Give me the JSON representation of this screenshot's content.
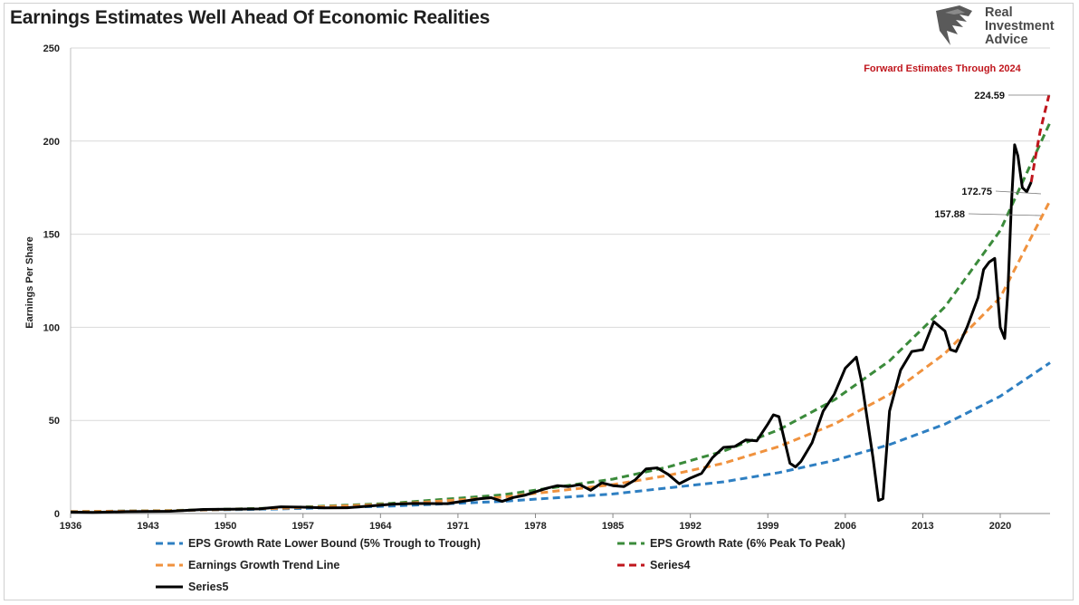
{
  "title": "Earnings Estimates Well Ahead Of Economic Realities",
  "logo": {
    "line1": "Real",
    "line2": "Investment",
    "line3": "Advice"
  },
  "colors": {
    "lower": "#2e7fc2",
    "peak": "#3b8b3b",
    "trend": "#f0923e",
    "series4": "#c0161d",
    "series5": "#000000"
  },
  "chart_data": {
    "type": "line",
    "ylabel": "Earnings Per Share",
    "xlabel": "",
    "ylim": [
      0,
      250
    ],
    "xlim": [
      1936,
      2024.5
    ],
    "yticks": [
      0,
      50,
      100,
      150,
      200,
      250
    ],
    "xticks": [
      "1936",
      "1943",
      "1950",
      "1957",
      "1964",
      "1971",
      "1978",
      "1985",
      "1992",
      "1999",
      "2006",
      "2013",
      "2020"
    ],
    "grid": "horizontal",
    "legend_position": "bottom",
    "annotations": [
      {
        "text": "Forward Estimates Through 2024",
        "color": "#c0161d"
      },
      {
        "text": "224.59",
        "x": 2024.4,
        "y": 224.59
      },
      {
        "text": "172.75",
        "x": 2024.0,
        "y": 172.75
      },
      {
        "text": "157.88",
        "x": 2024.0,
        "y": 157.88
      }
    ],
    "series": [
      {
        "name": "EPS Growth Rate Lower Bound (5% Trough to Trough)",
        "style": "dashed",
        "color": "#2e7fc2",
        "x": [
          1936,
          1945,
          1955,
          1965,
          1975,
          1985,
          1995,
          2000,
          2005,
          2010,
          2015,
          2020,
          2024.5
        ],
        "y": [
          1,
          1.5,
          2.5,
          4,
          6.5,
          10.5,
          17,
          22,
          28.5,
          37,
          48,
          63,
          81
        ]
      },
      {
        "name": "EPS Growth Rate (6% Peak To Peak)",
        "style": "dashed",
        "color": "#3b8b3b",
        "x": [
          1936,
          1945,
          1955,
          1965,
          1975,
          1985,
          1990,
          1995,
          2000,
          2005,
          2010,
          2015,
          2020,
          2024.5
        ],
        "y": [
          1,
          1.6,
          3,
          5.5,
          10,
          18.5,
          25,
          33.5,
          45,
          61,
          82,
          111,
          152,
          210
        ]
      },
      {
        "name": "Earnings Growth Trend Line",
        "style": "dashed",
        "color": "#f0923e",
        "x": [
          1936,
          1945,
          1955,
          1965,
          1975,
          1985,
          1990,
          1995,
          2000,
          2005,
          2010,
          2015,
          2020,
          2024.5
        ],
        "y": [
          1,
          1.5,
          2.8,
          5,
          8.8,
          15.5,
          20.5,
          27,
          36,
          48,
          64,
          86,
          116,
          168
        ]
      },
      {
        "name": "Series4",
        "style": "dashed",
        "color": "#c0161d",
        "x": [
          2022.8,
          2023.2,
          2023.6,
          2024.0,
          2024.4
        ],
        "y": [
          178,
          192,
          205,
          215,
          224.59
        ]
      },
      {
        "name": "Series5",
        "style": "solid",
        "color": "#000000",
        "x": [
          1936,
          1938,
          1941,
          1945,
          1948,
          1950,
          1953,
          1955,
          1957,
          1959,
          1961,
          1963,
          1965,
          1967,
          1970,
          1973,
          1974,
          1975,
          1976,
          1977,
          1979,
          1980,
          1981,
          1982,
          1983,
          1984,
          1985,
          1986,
          1987,
          1988,
          1989,
          1990,
          1991,
          1992,
          1993,
          1994,
          1995,
          1996,
          1997,
          1998,
          1999,
          1999.5,
          2000,
          2001,
          2001.5,
          2002,
          2003,
          2004,
          2005,
          2006,
          2007,
          2007.5,
          2008,
          2008.5,
          2009,
          2009.4,
          2010,
          2011,
          2012,
          2013,
          2014,
          2015,
          2015.5,
          2016,
          2017,
          2018,
          2018.5,
          2019,
          2019.5,
          2020,
          2020.4,
          2020.7,
          2021,
          2021.3,
          2021.6,
          2022,
          2022.4,
          2022.8
        ],
        "y": [
          0.8,
          0.6,
          1.0,
          1.2,
          2.2,
          2.3,
          2.5,
          3.6,
          3.4,
          3.0,
          3.1,
          4.0,
          5.0,
          5.4,
          5.3,
          8.0,
          8.5,
          6.5,
          8.6,
          9.8,
          13.5,
          15.0,
          14.5,
          15.5,
          12.5,
          16.5,
          15.0,
          14.5,
          18.0,
          24.0,
          24.5,
          21.0,
          16.0,
          19.0,
          21.5,
          30.0,
          35.5,
          36.0,
          39.5,
          39.0,
          48.0,
          53.0,
          52.0,
          27.0,
          25.0,
          28.0,
          38.0,
          55.0,
          64.0,
          78.0,
          84.0,
          70.0,
          50.0,
          30.0,
          7.0,
          8.0,
          55.0,
          77.0,
          87.0,
          88.0,
          103.0,
          98.0,
          88.0,
          87.0,
          100.0,
          116.0,
          131.0,
          135.0,
          137.0,
          100.0,
          94.0,
          120.0,
          165.0,
          198.0,
          192.0,
          175.0,
          172.75,
          178.0
        ]
      }
    ]
  }
}
